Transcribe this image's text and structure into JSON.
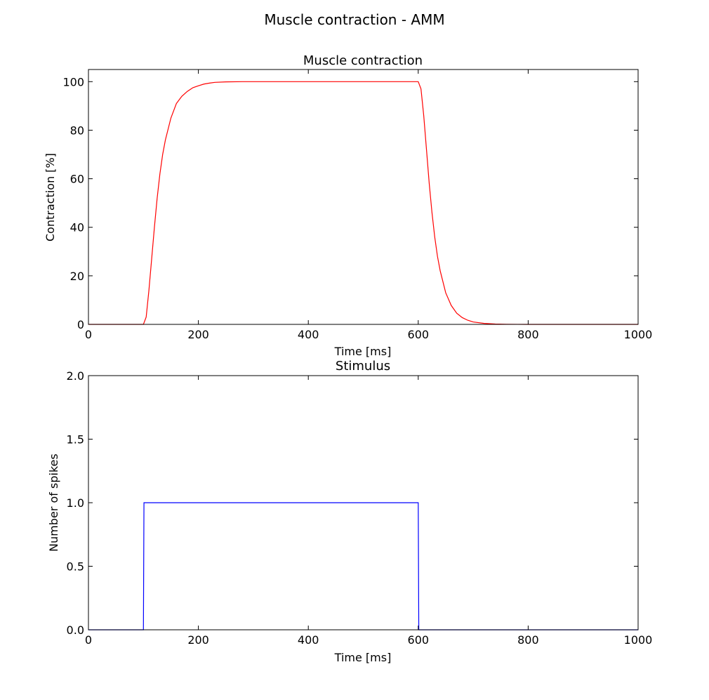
{
  "figure": {
    "suptitle": "Muscle contraction - AMM"
  },
  "chart_data": [
    {
      "type": "line",
      "title": "Muscle contraction",
      "xlabel": "Time [ms]",
      "ylabel": "Contraction [%]",
      "xlim": [
        0,
        1000
      ],
      "ylim": [
        0,
        105
      ],
      "xticks": [
        0,
        200,
        400,
        600,
        800,
        1000
      ],
      "yticks": [
        0,
        20,
        40,
        60,
        80,
        100
      ],
      "grid": false,
      "legend": "none",
      "series": [
        {
          "color": "#ff0000",
          "x": [
            0,
            100,
            105,
            110,
            115,
            120,
            125,
            130,
            135,
            140,
            150,
            160,
            170,
            180,
            190,
            200,
            210,
            220,
            230,
            250,
            280,
            300,
            400,
            500,
            600,
            605,
            610,
            615,
            620,
            625,
            630,
            635,
            640,
            650,
            660,
            670,
            680,
            690,
            700,
            720,
            740,
            760,
            780,
            800,
            900,
            1000
          ],
          "y": [
            0,
            0,
            3,
            14,
            27,
            40,
            52,
            62,
            70,
            76,
            85,
            91,
            94,
            96,
            97.5,
            98.3,
            99,
            99.4,
            99.7,
            99.9,
            100,
            100,
            100,
            100,
            100,
            97,
            86,
            72,
            58,
            46,
            36,
            28,
            22,
            13,
            7.8,
            4.6,
            2.8,
            1.7,
            1,
            0.4,
            0.15,
            0.05,
            0.02,
            0,
            0,
            0
          ]
        }
      ]
    },
    {
      "type": "line",
      "title": "Stimulus",
      "xlabel": "Time [ms]",
      "ylabel": "Number of spikes",
      "xlim": [
        0,
        1000
      ],
      "ylim": [
        0,
        2
      ],
      "xticks": [
        0,
        200,
        400,
        600,
        800,
        1000
      ],
      "yticks": [
        0.0,
        0.5,
        1.0,
        1.5,
        2.0
      ],
      "ytick_labels": [
        "0.0",
        "0.5",
        "1.0",
        "1.5",
        "2.0"
      ],
      "grid": false,
      "legend": "none",
      "series": [
        {
          "color": "#0000ff",
          "x": [
            0,
            100,
            101,
            600,
            601,
            1000
          ],
          "y": [
            0,
            0,
            1,
            1,
            0,
            0
          ]
        }
      ]
    }
  ]
}
